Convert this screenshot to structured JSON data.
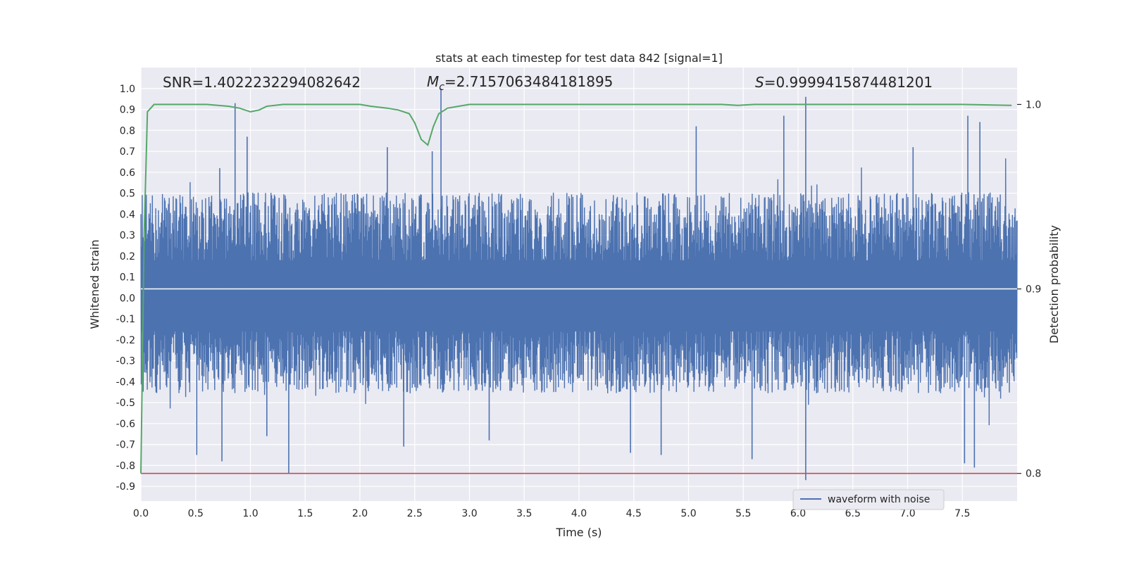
{
  "chart_data": {
    "type": "line",
    "title": "stats at each timestep for test data 842 [signal=1]",
    "xlabel": "Time (s)",
    "ylabel": "Whitened strain",
    "y2label": "Detection probability",
    "xlim": [
      0.0,
      8.0
    ],
    "ylim": [
      -0.97,
      1.1
    ],
    "y2lim": [
      0.785,
      1.02
    ],
    "x_ticks": [
      "0.0",
      "0.5",
      "1.0",
      "1.5",
      "2.0",
      "2.5",
      "3.0",
      "3.5",
      "4.0",
      "4.5",
      "5.0",
      "5.5",
      "6.0",
      "6.5",
      "7.0",
      "7.5"
    ],
    "y_ticks": [
      "-0.9",
      "-0.8",
      "-0.7",
      "-0.6",
      "-0.5",
      "-0.4",
      "-0.3",
      "-0.2",
      "-0.1",
      "0.0",
      "0.1",
      "0.2",
      "0.3",
      "0.4",
      "0.5",
      "0.6",
      "0.7",
      "0.8",
      "0.9",
      "1.0"
    ],
    "y2_ticks": [
      "0.8",
      "0.9",
      "1.0"
    ],
    "grid": true,
    "legend_position": "lower-right",
    "annotations": {
      "snr": "SNR=1.4022232294082642",
      "mc_symbol": "M",
      "mc_subscript": "c",
      "mc_value": "=2.7157063484181895",
      "s_symbol": "S",
      "s_value": "=0.9999415874481201"
    },
    "series": [
      {
        "name": "waveform with noise",
        "axis": "left",
        "color": "#4c72b0",
        "description_kind": "dense noise",
        "envelope_typical_upper": 0.42,
        "envelope_typical_lower": -0.38,
        "spikes": [
          {
            "x": 0.86,
            "y": 0.93
          },
          {
            "x": 0.97,
            "y": 0.77
          },
          {
            "x": 0.72,
            "y": 0.62
          },
          {
            "x": 2.74,
            "y": 1.0
          },
          {
            "x": 2.66,
            "y": 0.7
          },
          {
            "x": 2.25,
            "y": 0.72
          },
          {
            "x": 5.07,
            "y": 0.82
          },
          {
            "x": 5.87,
            "y": 0.87
          },
          {
            "x": 6.07,
            "y": 0.96
          },
          {
            "x": 7.55,
            "y": 0.87
          },
          {
            "x": 7.66,
            "y": 0.84
          },
          {
            "x": 7.05,
            "y": 0.72
          },
          {
            "x": 1.35,
            "y": -0.84
          },
          {
            "x": 0.51,
            "y": -0.75
          },
          {
            "x": 0.74,
            "y": -0.78
          },
          {
            "x": 4.47,
            "y": -0.74
          },
          {
            "x": 4.75,
            "y": -0.75
          },
          {
            "x": 5.58,
            "y": -0.77
          },
          {
            "x": 6.07,
            "y": -0.87
          },
          {
            "x": 7.52,
            "y": -0.79
          },
          {
            "x": 7.61,
            "y": -0.81
          },
          {
            "x": 2.4,
            "y": -0.71
          },
          {
            "x": 1.15,
            "y": -0.66
          },
          {
            "x": 3.18,
            "y": -0.68
          }
        ]
      },
      {
        "name": "detection probability",
        "axis": "right",
        "color": "#55a868",
        "x": [
          0.0,
          0.03,
          0.06,
          0.12,
          0.2,
          0.4,
          0.6,
          0.8,
          0.9,
          1.0,
          1.08,
          1.15,
          1.3,
          1.6,
          2.0,
          2.1,
          2.25,
          2.35,
          2.45,
          2.5,
          2.56,
          2.62,
          2.67,
          2.72,
          2.8,
          2.9,
          3.0,
          3.5,
          4.0,
          4.5,
          5.0,
          5.3,
          5.45,
          5.6,
          6.0,
          6.5,
          7.0,
          7.5,
          7.95
        ],
        "y": [
          0.8,
          0.93,
          0.996,
          1.0,
          1.0,
          1.0,
          1.0,
          0.999,
          0.998,
          0.996,
          0.997,
          0.999,
          1.0,
          1.0,
          1.0,
          0.999,
          0.998,
          0.997,
          0.995,
          0.99,
          0.981,
          0.978,
          0.988,
          0.995,
          0.998,
          0.999,
          1.0,
          1.0,
          1.0,
          1.0,
          1.0,
          1.0,
          0.9995,
          1.0,
          1.0,
          1.0,
          1.0,
          1.0,
          0.9995
        ]
      },
      {
        "name": "threshold",
        "axis": "right",
        "color": "#c44e52",
        "y": 0.8
      },
      {
        "name": "reference line",
        "axis": "right",
        "color": "#ffffff",
        "y": 0.9
      }
    ]
  }
}
